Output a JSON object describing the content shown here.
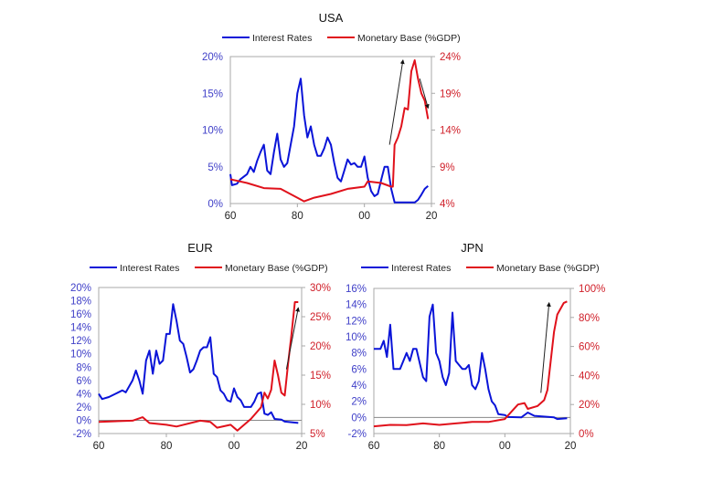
{
  "chart_data": [
    {
      "type": "line",
      "title": "USA",
      "legend": [
        "Interest Rates",
        "Monetary Base (%GDP)"
      ],
      "legend_placement": "top",
      "colors": {
        "left": "#0a14d8",
        "right": "#e0111b",
        "lefttick": "#4040c8",
        "righttick": "#d0202a",
        "arrow": "#222222"
      },
      "xlim": [
        1960,
        2020
      ],
      "x_ticks": [
        1960,
        1980,
        2000,
        2020
      ],
      "x_tick_labels": [
        "60",
        "80",
        "00",
        "20"
      ],
      "ylim_left": [
        0,
        20
      ],
      "y_ticks_left": [
        0,
        5,
        10,
        15,
        20
      ],
      "y_tick_labels_left": [
        "0%",
        "5%",
        "10%",
        "15%",
        "20%"
      ],
      "ylim_right": [
        4,
        24
      ],
      "y_ticks_right": [
        4,
        9,
        14,
        19,
        24
      ],
      "y_tick_labels_right": [
        "4%",
        "9%",
        "14%",
        "19%",
        "24%"
      ],
      "series": [
        {
          "name": "Interest Rates",
          "axis": "left",
          "points": [
            [
              1960,
              4
            ],
            [
              1960.5,
              2.5
            ],
            [
              1962,
              2.7
            ],
            [
              1963,
              3.3
            ],
            [
              1965,
              4
            ],
            [
              1966,
              5
            ],
            [
              1967,
              4.3
            ],
            [
              1968,
              5.8
            ],
            [
              1969,
              7
            ],
            [
              1970,
              8
            ],
            [
              1971,
              4.5
            ],
            [
              1972,
              4
            ],
            [
              1973,
              7
            ],
            [
              1974,
              9.5
            ],
            [
              1975,
              6
            ],
            [
              1976,
              5
            ],
            [
              1977,
              5.5
            ],
            [
              1978,
              8
            ],
            [
              1979,
              10.5
            ],
            [
              1980,
              15
            ],
            [
              1981,
              17
            ],
            [
              1982,
              12
            ],
            [
              1983,
              9
            ],
            [
              1984,
              10.5
            ],
            [
              1985,
              8
            ],
            [
              1986,
              6.5
            ],
            [
              1987,
              6.5
            ],
            [
              1988,
              7.5
            ],
            [
              1989,
              9
            ],
            [
              1990,
              8
            ],
            [
              1991,
              5.5
            ],
            [
              1992,
              3.5
            ],
            [
              1993,
              3
            ],
            [
              1994,
              4.5
            ],
            [
              1995,
              6
            ],
            [
              1996,
              5.3
            ],
            [
              1997,
              5.5
            ],
            [
              1998,
              5
            ],
            [
              1999,
              5
            ],
            [
              2000,
              6.4
            ],
            [
              2001,
              3.5
            ],
            [
              2002,
              1.7
            ],
            [
              2003,
              1
            ],
            [
              2004,
              1.3
            ],
            [
              2005,
              3.2
            ],
            [
              2006,
              5
            ],
            [
              2007,
              5
            ],
            [
              2008,
              2
            ],
            [
              2009,
              0.15
            ],
            [
              2015,
              0.15
            ],
            [
              2016,
              0.5
            ],
            [
              2017,
              1.2
            ],
            [
              2018,
              2
            ],
            [
              2019,
              2.4
            ]
          ]
        },
        {
          "name": "Monetary Base (%GDP)",
          "axis": "right",
          "points": [
            [
              1960,
              7.3
            ],
            [
              1965,
              6.8
            ],
            [
              1970,
              6.1
            ],
            [
              1975,
              6
            ],
            [
              1980,
              4.8
            ],
            [
              1982,
              4.3
            ],
            [
              1985,
              4.8
            ],
            [
              1990,
              5.3
            ],
            [
              1995,
              6
            ],
            [
              2000,
              6.3
            ],
            [
              2001,
              7
            ],
            [
              2005,
              6.8
            ],
            [
              2008,
              6.3
            ],
            [
              2008.5,
              6.3
            ],
            [
              2009,
              12
            ],
            [
              2010,
              13
            ],
            [
              2011,
              14.5
            ],
            [
              2012,
              17
            ],
            [
              2013,
              16.8
            ],
            [
              2014,
              22
            ],
            [
              2015,
              23.5
            ],
            [
              2016,
              21
            ],
            [
              2017,
              19
            ],
            [
              2018,
              18
            ],
            [
              2019,
              15.5
            ]
          ]
        }
      ],
      "arrows": [
        {
          "axis": "right",
          "from": [
            2007.5,
            12
          ],
          "to": [
            2011.5,
            23.5
          ]
        },
        {
          "axis": "right",
          "from": [
            2016.5,
            21
          ],
          "to": [
            2019,
            17
          ]
        }
      ]
    },
    {
      "type": "line",
      "title": "EUR",
      "legend": [
        "Interest Rates",
        "Monetary Base (%GDP)"
      ],
      "legend_placement": "top",
      "colors": {
        "left": "#0a14d8",
        "right": "#e0111b",
        "lefttick": "#4040c8",
        "righttick": "#d0202a",
        "arrow": "#222222"
      },
      "xlim": [
        1960,
        2020
      ],
      "x_ticks": [
        1960,
        1980,
        2000,
        2020
      ],
      "x_tick_labels": [
        "60",
        "80",
        "00",
        "20"
      ],
      "ylim_left": [
        -2,
        20
      ],
      "y_ticks_left": [
        -2,
        0,
        2,
        4,
        6,
        8,
        10,
        12,
        14,
        16,
        18,
        20
      ],
      "y_tick_labels_left": [
        "-2%",
        "0%",
        "2%",
        "4%",
        "6%",
        "8%",
        "10%",
        "12%",
        "14%",
        "16%",
        "18%",
        "20%"
      ],
      "ylim_right": [
        5,
        30
      ],
      "y_ticks_right": [
        5,
        10,
        15,
        20,
        25,
        30
      ],
      "y_tick_labels_right": [
        "5%",
        "10%",
        "15%",
        "20%",
        "25%",
        "30%"
      ],
      "zero_line": true,
      "series": [
        {
          "name": "Interest Rates",
          "axis": "left",
          "points": [
            [
              1960,
              4
            ],
            [
              1961,
              3.2
            ],
            [
              1963,
              3.5
            ],
            [
              1965,
              4
            ],
            [
              1967,
              4.5
            ],
            [
              1968,
              4.2
            ],
            [
              1970,
              6
            ],
            [
              1971,
              7.5
            ],
            [
              1972,
              6
            ],
            [
              1973,
              4
            ],
            [
              1974,
              9
            ],
            [
              1975,
              10.5
            ],
            [
              1976,
              7
            ],
            [
              1977,
              10.5
            ],
            [
              1978,
              8.5
            ],
            [
              1979,
              9
            ],
            [
              1980,
              13
            ],
            [
              1981,
              13
            ],
            [
              1982,
              17.5
            ],
            [
              1983,
              15
            ],
            [
              1984,
              12
            ],
            [
              1985,
              11.5
            ],
            [
              1986,
              9.5
            ],
            [
              1987,
              7.2
            ],
            [
              1988,
              7.7
            ],
            [
              1989,
              9
            ],
            [
              1990,
              10.5
            ],
            [
              1991,
              11
            ],
            [
              1992,
              11
            ],
            [
              1993,
              12.5
            ],
            [
              1994,
              7
            ],
            [
              1995,
              6.5
            ],
            [
              1996,
              4.5
            ],
            [
              1997,
              4
            ],
            [
              1998,
              3
            ],
            [
              1999,
              2.8
            ],
            [
              2000,
              4.8
            ],
            [
              2001,
              3.5
            ],
            [
              2002,
              3
            ],
            [
              2003,
              2
            ],
            [
              2005,
              2
            ],
            [
              2006,
              2.8
            ],
            [
              2007,
              4
            ],
            [
              2008,
              4.2
            ],
            [
              2009,
              1
            ],
            [
              2010,
              0.8
            ],
            [
              2011,
              1.2
            ],
            [
              2012,
              0.2
            ],
            [
              2014,
              0.1
            ],
            [
              2015,
              -0.2
            ],
            [
              2019,
              -0.4
            ]
          ]
        },
        {
          "name": "Monetary Base (%GDP)",
          "axis": "right",
          "points": [
            [
              1960,
              7
            ],
            [
              1970,
              7.2
            ],
            [
              1973,
              7.8
            ],
            [
              1975,
              6.8
            ],
            [
              1980,
              6.5
            ],
            [
              1983,
              6.2
            ],
            [
              1990,
              7.2
            ],
            [
              1993,
              7
            ],
            [
              1995,
              6
            ],
            [
              1999,
              6.5
            ],
            [
              2001,
              5.5
            ],
            [
              2003,
              6.5
            ],
            [
              2005,
              7.5
            ],
            [
              2008,
              9.5
            ],
            [
              2009,
              12
            ],
            [
              2010,
              11
            ],
            [
              2011,
              12.5
            ],
            [
              2012,
              17.5
            ],
            [
              2013,
              15
            ],
            [
              2014,
              12
            ],
            [
              2015,
              11.5
            ],
            [
              2016,
              17
            ],
            [
              2017,
              22
            ],
            [
              2018,
              27.5
            ],
            [
              2019,
              27.5
            ]
          ]
        }
      ],
      "arrows": [
        {
          "axis": "right",
          "from": [
            2015.5,
            16
          ],
          "to": [
            2019,
            26.5
          ]
        }
      ]
    },
    {
      "type": "line",
      "title": "JPN",
      "legend": [
        "Interest Rates",
        "Monetary Base (%GDP)"
      ],
      "legend_placement": "top",
      "colors": {
        "left": "#0a14d8",
        "right": "#e0111b",
        "lefttick": "#4040c8",
        "righttick": "#d0202a",
        "arrow": "#222222"
      },
      "xlim": [
        1960,
        2020
      ],
      "x_ticks": [
        1960,
        1980,
        2000,
        2020
      ],
      "x_tick_labels": [
        "60",
        "80",
        "00",
        "20"
      ],
      "ylim_left": [
        -2,
        16
      ],
      "y_ticks_left": [
        -2,
        0,
        2,
        4,
        6,
        8,
        10,
        12,
        14,
        16
      ],
      "y_tick_labels_left": [
        "-2%",
        "0%",
        "2%",
        "4%",
        "6%",
        "8%",
        "10%",
        "12%",
        "14%",
        "16%"
      ],
      "ylim_right": [
        0,
        100
      ],
      "y_ticks_right": [
        0,
        20,
        40,
        60,
        80,
        100
      ],
      "y_tick_labels_right": [
        "0%",
        "20%",
        "40%",
        "60%",
        "80%",
        "100%"
      ],
      "zero_line": true,
      "series": [
        {
          "name": "Interest Rates",
          "axis": "left",
          "points": [
            [
              1960,
              8.5
            ],
            [
              1962,
              8.5
            ],
            [
              1963,
              9.5
            ],
            [
              1964,
              7.5
            ],
            [
              1965,
              11.5
            ],
            [
              1966,
              6
            ],
            [
              1968,
              6
            ],
            [
              1970,
              8
            ],
            [
              1971,
              7
            ],
            [
              1972,
              8.5
            ],
            [
              1973,
              8.5
            ],
            [
              1975,
              5
            ],
            [
              1976,
              4.5
            ],
            [
              1977,
              12.5
            ],
            [
              1978,
              14
            ],
            [
              1979,
              8
            ],
            [
              1980,
              7
            ],
            [
              1981,
              5
            ],
            [
              1982,
              4
            ],
            [
              1983,
              5.5
            ],
            [
              1984,
              13
            ],
            [
              1985,
              7
            ],
            [
              1986,
              6.5
            ],
            [
              1987,
              6
            ],
            [
              1988,
              6
            ],
            [
              1989,
              6.5
            ],
            [
              1990,
              4
            ],
            [
              1991,
              3.5
            ],
            [
              1992,
              4.5
            ],
            [
              1993,
              8
            ],
            [
              1994,
              6
            ],
            [
              1995,
              3.5
            ],
            [
              1996,
              2
            ],
            [
              1997,
              1.5
            ],
            [
              1998,
              0.4
            ],
            [
              2000,
              0.3
            ],
            [
              2001,
              0.05
            ],
            [
              2005,
              0
            ],
            [
              2007,
              0.6
            ],
            [
              2009,
              0.2
            ],
            [
              2015,
              0
            ],
            [
              2016,
              -0.2
            ],
            [
              2019,
              -0.1
            ]
          ]
        },
        {
          "name": "Monetary Base (%GDP)",
          "axis": "right",
          "points": [
            [
              1960,
              5
            ],
            [
              1965,
              6
            ],
            [
              1970,
              5.8
            ],
            [
              1975,
              7
            ],
            [
              1980,
              6
            ],
            [
              1985,
              7
            ],
            [
              1990,
              8
            ],
            [
              1995,
              8
            ],
            [
              2000,
              10
            ],
            [
              2002,
              15
            ],
            [
              2004,
              20
            ],
            [
              2006,
              21
            ],
            [
              2007,
              17
            ],
            [
              2010,
              19
            ],
            [
              2012,
              23
            ],
            [
              2013,
              30
            ],
            [
              2014,
              50
            ],
            [
              2015,
              70
            ],
            [
              2016,
              82
            ],
            [
              2018,
              90
            ],
            [
              2019,
              91
            ]
          ]
        }
      ],
      "arrows": [
        {
          "axis": "right",
          "from": [
            2011,
            28
          ],
          "to": [
            2013.5,
            90
          ]
        }
      ]
    }
  ]
}
